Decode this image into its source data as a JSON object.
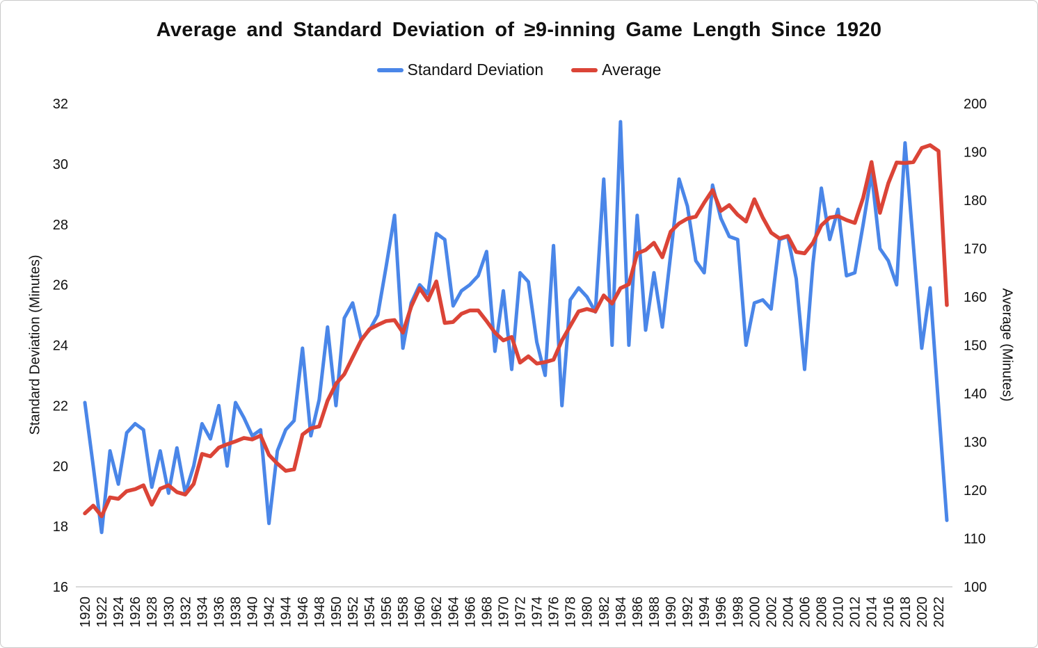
{
  "title": "Average and Standard Deviation of ≥9-inning Game Length Since 1920",
  "legend": [
    {
      "label": "Standard Deviation",
      "color": "#4a86e8"
    },
    {
      "label": "Average",
      "color": "#db4437"
    }
  ],
  "y_left": {
    "label": "Standard Deviation (Minutes)"
  },
  "y_right": {
    "label": "Average (Minutes)"
  },
  "colors": {
    "sd_line": "#4a86e8",
    "avg_line": "#db4437",
    "axis_line": "#d9d9d9",
    "text": "#111111"
  },
  "chart_data": {
    "type": "line",
    "title": "Average and Standard Deviation of ≥9-inning Game Length Since 1920",
    "xlabel": "",
    "ylabel_left": "Standard Deviation (Minutes)",
    "ylabel_right": "Average (Minutes)",
    "grid": false,
    "legend_position": "top",
    "x_tick_step": 2,
    "x_tick_min": 1920,
    "x_tick_max": 2022,
    "y_left_range": [
      16,
      32
    ],
    "y_right_range": [
      100,
      200
    ],
    "y_left_ticks": [
      16,
      18,
      20,
      22,
      24,
      26,
      28,
      30,
      32
    ],
    "y_right_ticks": [
      100,
      110,
      120,
      130,
      140,
      150,
      160,
      170,
      180,
      190,
      200
    ],
    "x": [
      1920,
      1921,
      1922,
      1923,
      1924,
      1925,
      1926,
      1927,
      1928,
      1929,
      1930,
      1931,
      1932,
      1933,
      1934,
      1935,
      1936,
      1937,
      1938,
      1939,
      1940,
      1941,
      1942,
      1943,
      1944,
      1945,
      1946,
      1947,
      1948,
      1949,
      1950,
      1951,
      1952,
      1953,
      1954,
      1955,
      1956,
      1957,
      1958,
      1959,
      1960,
      1961,
      1962,
      1963,
      1964,
      1965,
      1966,
      1967,
      1968,
      1969,
      1970,
      1971,
      1972,
      1973,
      1974,
      1975,
      1976,
      1977,
      1978,
      1979,
      1980,
      1981,
      1982,
      1983,
      1984,
      1985,
      1986,
      1987,
      1988,
      1989,
      1990,
      1991,
      1992,
      1993,
      1994,
      1995,
      1996,
      1997,
      1998,
      1999,
      2000,
      2001,
      2002,
      2003,
      2004,
      2005,
      2006,
      2007,
      2008,
      2009,
      2010,
      2011,
      2012,
      2013,
      2014,
      2015,
      2016,
      2017,
      2018,
      2019,
      2020,
      2021,
      2022,
      2023
    ],
    "series": [
      {
        "name": "Standard Deviation",
        "axis": "left",
        "color": "#4a86e8",
        "values": [
          22.1,
          20.0,
          17.8,
          20.5,
          19.4,
          21.1,
          21.4,
          21.2,
          19.3,
          20.5,
          19.1,
          20.6,
          19.1,
          20.0,
          21.4,
          20.9,
          22.0,
          20.0,
          22.1,
          21.6,
          21.0,
          21.2,
          18.1,
          20.5,
          21.2,
          21.5,
          23.9,
          21.0,
          22.2,
          24.6,
          22.0,
          24.9,
          25.4,
          24.2,
          24.5,
          25.0,
          26.6,
          28.3,
          23.9,
          25.4,
          26.0,
          25.7,
          27.7,
          27.5,
          25.3,
          25.8,
          26.0,
          26.3,
          27.1,
          23.8,
          25.8,
          23.2,
          26.4,
          26.1,
          24.1,
          23.0,
          27.3,
          22.0,
          25.5,
          25.9,
          25.6,
          25.1,
          29.5,
          24.0,
          31.4,
          24.0,
          28.3,
          24.5,
          26.4,
          24.6,
          27.0,
          29.5,
          28.6,
          26.8,
          26.4,
          29.3,
          28.2,
          27.6,
          27.5,
          24.0,
          25.4,
          25.5,
          25.2,
          27.5,
          27.6,
          26.2,
          23.2,
          26.7,
          29.2,
          27.5,
          28.5,
          26.3,
          26.4,
          28.0,
          29.7,
          27.2,
          26.8,
          26.0,
          30.7,
          27.3,
          23.9,
          25.9,
          22.0,
          18.2
        ]
      },
      {
        "name": "Average",
        "axis": "right",
        "color": "#db4437",
        "values": [
          115.2,
          116.8,
          114.6,
          118.5,
          118.2,
          119.8,
          120.2,
          121.0,
          117.0,
          120.3,
          121.0,
          119.6,
          119.1,
          121.3,
          127.5,
          127.0,
          128.8,
          129.5,
          130.1,
          130.8,
          130.5,
          131.3,
          127.3,
          125.5,
          124.0,
          124.3,
          131.5,
          132.8,
          133.2,
          138.5,
          142.0,
          144.0,
          147.5,
          151.0,
          153.3,
          154.2,
          155.0,
          155.2,
          152.6,
          158.0,
          161.8,
          159.3,
          163.2,
          154.6,
          154.8,
          156.5,
          157.2,
          157.2,
          155.0,
          152.6,
          151.0,
          151.7,
          146.4,
          147.7,
          146.2,
          146.5,
          147.0,
          151.0,
          154.0,
          157.0,
          157.5,
          157.0,
          160.3,
          158.6,
          161.8,
          162.6,
          169.0,
          169.7,
          171.2,
          168.2,
          173.5,
          175.2,
          176.2,
          176.6,
          179.5,
          182.1,
          177.8,
          179.0,
          177.0,
          175.6,
          180.2,
          176.4,
          173.3,
          172.1,
          172.6,
          169.3,
          169.0,
          171.2,
          174.8,
          176.4,
          176.7,
          175.9,
          175.3,
          180.5,
          187.9,
          177.4,
          183.5,
          187.8,
          187.7,
          187.9,
          190.8,
          191.4,
          190.2,
          158.3
        ]
      }
    ]
  }
}
